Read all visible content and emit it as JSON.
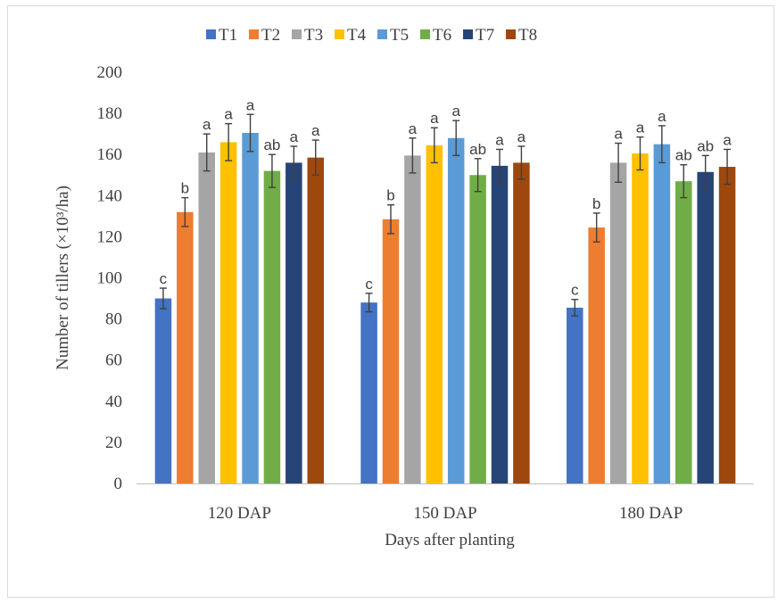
{
  "chart_data": {
    "type": "bar",
    "categories": [
      "120 DAP",
      "150 DAP",
      "180 DAP"
    ],
    "xlabel": "Days after planting",
    "ylabel": "Number of tillers (×10³/ha)",
    "ylim": [
      0,
      200
    ],
    "yticks": [
      0,
      20,
      40,
      60,
      80,
      100,
      120,
      140,
      160,
      180,
      200
    ],
    "grid": false,
    "legend_position": "top",
    "series": [
      {
        "name": "T1",
        "color": "#4472C4",
        "values": [
          90,
          88,
          85.5
        ],
        "errors": [
          5,
          4.5,
          4
        ],
        "labels": [
          "c",
          "c",
          "c"
        ]
      },
      {
        "name": "T2",
        "color": "#ED7D31",
        "values": [
          132,
          128.5,
          124.5
        ],
        "errors": [
          7,
          7,
          7
        ],
        "labels": [
          "b",
          "b",
          "b"
        ]
      },
      {
        "name": "T3",
        "color": "#A5A5A5",
        "values": [
          161,
          159.5,
          156
        ],
        "errors": [
          9,
          8.5,
          9.5
        ],
        "labels": [
          "a",
          "a",
          "a"
        ]
      },
      {
        "name": "T4",
        "color": "#FFC000",
        "values": [
          166,
          164.5,
          160.5
        ],
        "errors": [
          9,
          8.5,
          8
        ],
        "labels": [
          "a",
          "a",
          "a"
        ]
      },
      {
        "name": "T5",
        "color": "#5B9BD5",
        "values": [
          170.5,
          168,
          165
        ],
        "errors": [
          9,
          8.5,
          9
        ],
        "labels": [
          "a",
          "a",
          "a"
        ]
      },
      {
        "name": "T6",
        "color": "#70AD47",
        "values": [
          152,
          150,
          147
        ],
        "errors": [
          8,
          8,
          8
        ],
        "labels": [
          "ab",
          "ab",
          "ab"
        ]
      },
      {
        "name": "T7",
        "color": "#264478",
        "values": [
          156,
          154.5,
          151.5
        ],
        "errors": [
          8,
          8,
          8
        ],
        "labels": [
          "a",
          "a",
          "ab"
        ]
      },
      {
        "name": "T8",
        "color": "#9E480E",
        "values": [
          158.5,
          156,
          154
        ],
        "errors": [
          8.5,
          8,
          8.5
        ],
        "labels": [
          "a",
          "a",
          "a"
        ]
      }
    ]
  }
}
